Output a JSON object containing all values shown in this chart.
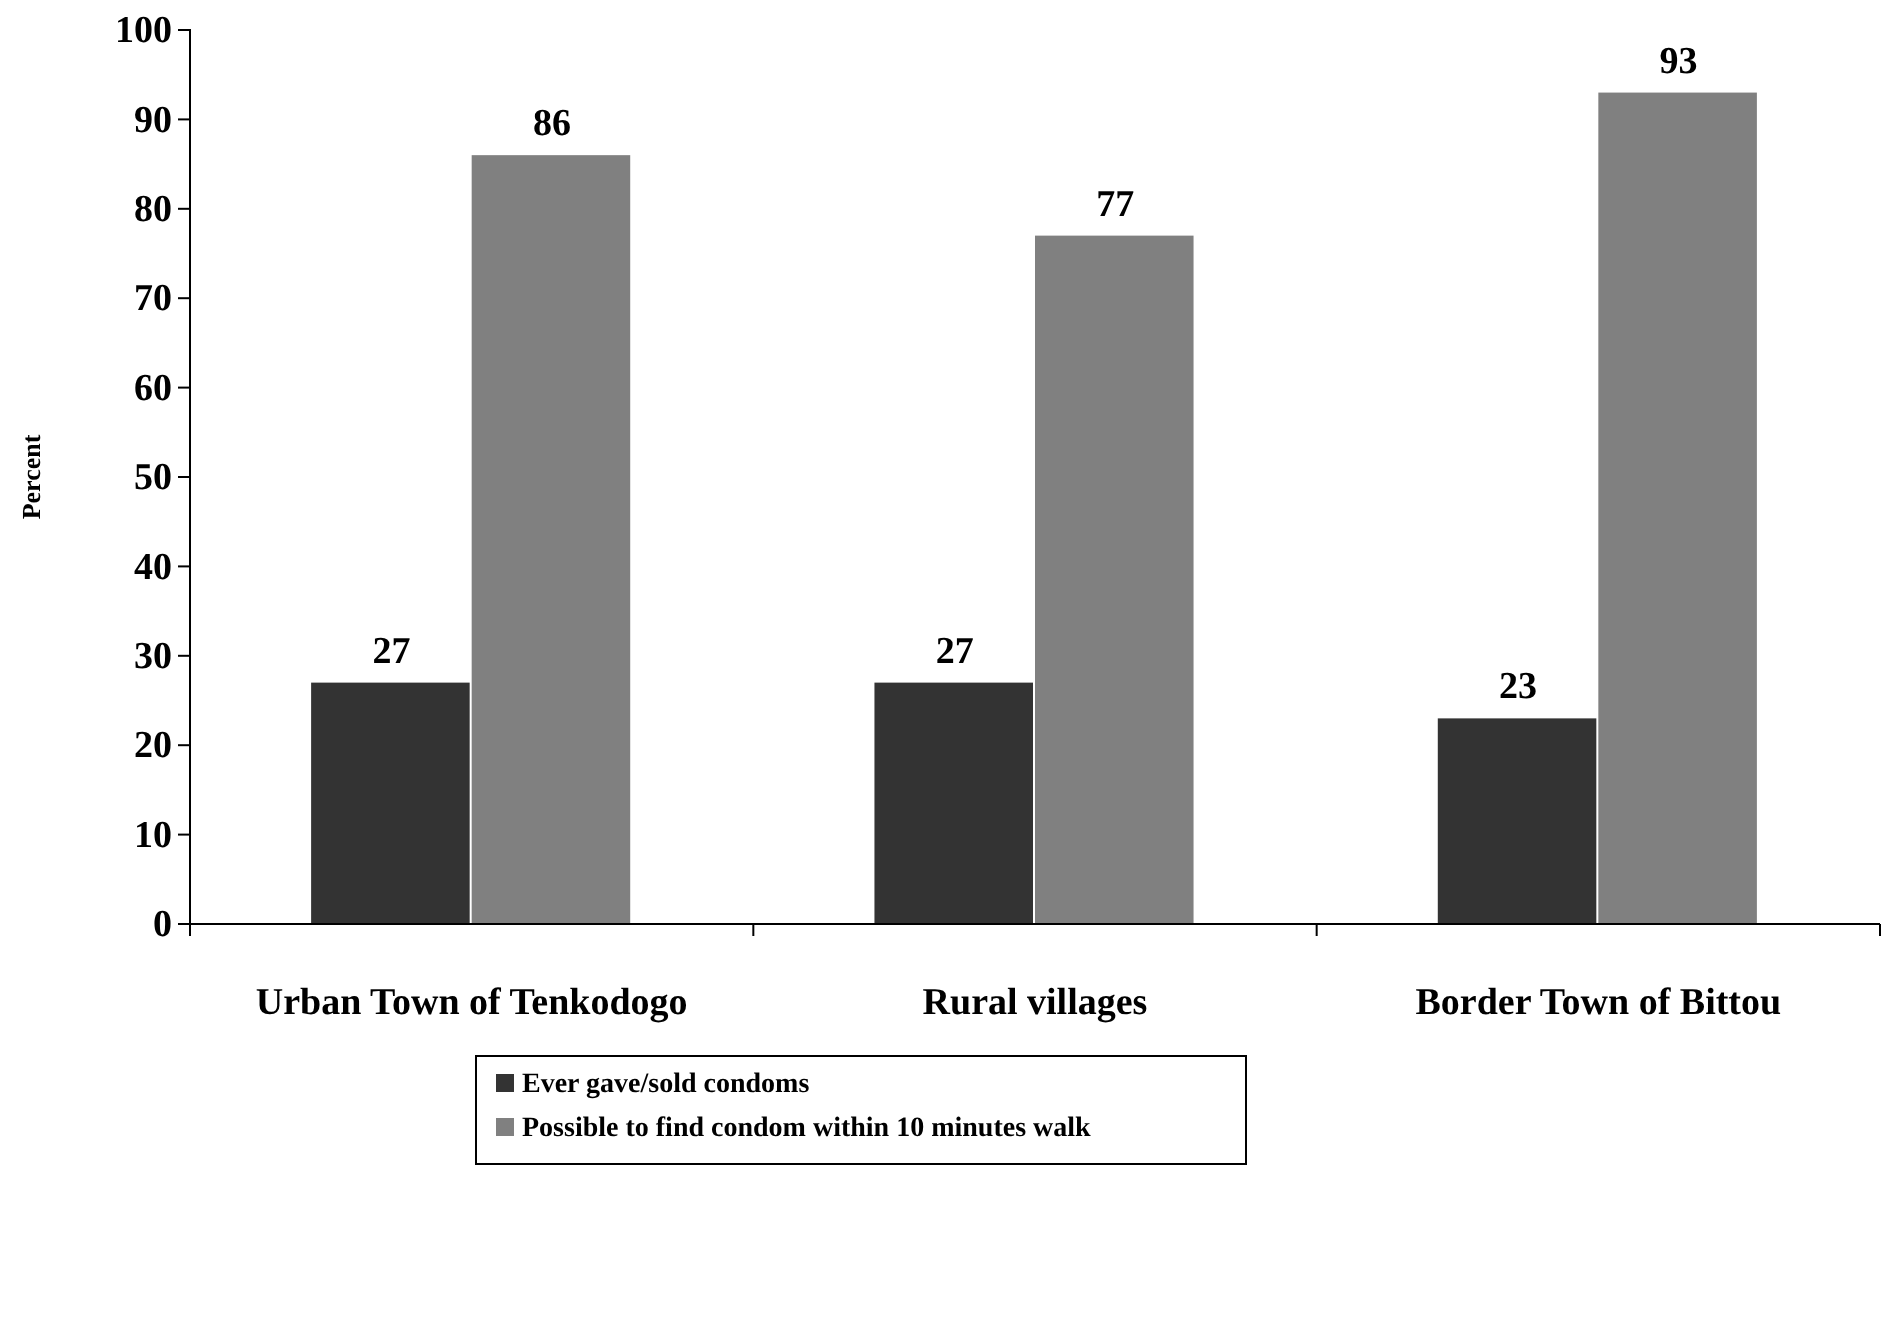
{
  "chart_data": {
    "type": "bar",
    "ylabel": "Percent",
    "categories": [
      "Urban Town of Tenkodogo",
      "Rural villages",
      "Border Town of Bittou"
    ],
    "series": [
      {
        "name": "Ever gave/sold condoms",
        "color": "#333333",
        "values": [
          27,
          27,
          23
        ]
      },
      {
        "name": "Possible to find condom within 10 minutes walk",
        "color": "#808080",
        "values": [
          86,
          77,
          93
        ]
      }
    ],
    "ylim": [
      0,
      100
    ],
    "yticks": [
      0,
      10,
      20,
      30,
      40,
      50,
      60,
      70,
      80,
      90,
      100
    ],
    "data_labels": true,
    "legend": "bottom",
    "grid": false
  }
}
